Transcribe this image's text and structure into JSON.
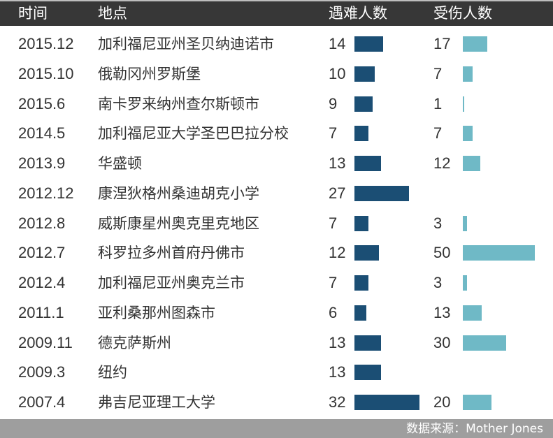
{
  "header": {
    "col_time": "时间",
    "col_place": "地点",
    "col_killed": "遇难人数",
    "col_injured": "受伤人数"
  },
  "colors": {
    "header_bg": "#373737",
    "killed_bar": "#1b4e74",
    "injured_bar": "#6fb9c6",
    "footer_bg": "#9e9e9e"
  },
  "rows": [
    {
      "date": "2015.12",
      "place": "加利福尼亚州圣贝纳迪诺市",
      "killed": "14",
      "injured": "17"
    },
    {
      "date": "2015.10",
      "place": "俄勒冈州罗斯堡",
      "killed": "10",
      "injured": "7"
    },
    {
      "date": "2015.6",
      "place": "南卡罗来纳州查尔斯顿市",
      "killed": "9",
      "injured": "1"
    },
    {
      "date": "2014.5",
      "place": "加利福尼亚大学圣巴巴拉分校",
      "killed": "7",
      "injured": "7"
    },
    {
      "date": "2013.9",
      "place": "华盛顿",
      "killed": "13",
      "injured": "12"
    },
    {
      "date": "2012.12",
      "place": "康涅狄格州桑迪胡克小学",
      "killed": "27",
      "injured": ""
    },
    {
      "date": "2012.8",
      "place": "威斯康星州奥克里克地区",
      "killed": "7",
      "injured": "3"
    },
    {
      "date": "2012.7",
      "place": "科罗拉多州首府丹佛市",
      "killed": "12",
      "injured": "50"
    },
    {
      "date": "2012.4",
      "place": "加利福尼亚州奥克兰市",
      "killed": "7",
      "injured": "3"
    },
    {
      "date": "2011.1",
      "place": "亚利桑那州图森市",
      "killed": "6",
      "injured": "13"
    },
    {
      "date": "2009.11",
      "place": "德克萨斯州",
      "killed": "13",
      "injured": "30"
    },
    {
      "date": "2009.3",
      "place": "纽约",
      "killed": "13",
      "injured": ""
    },
    {
      "date": "2007.4",
      "place": "弗吉尼亚理工大学",
      "killed": "32",
      "injured": "20"
    }
  ],
  "footer": {
    "source": "数据来源：Mother Jones"
  },
  "chart_data": {
    "type": "bar",
    "title": "",
    "categories": [
      "2015.12 加利福尼亚州圣贝纳迪诺市",
      "2015.10 俄勒冈州罗斯堡",
      "2015.6 南卡罗来纳州查尔斯顿市",
      "2014.5 加利福尼亚大学圣巴巴拉分校",
      "2013.9 华盛顿",
      "2012.12 康涅狄格州桑迪胡克小学",
      "2012.8 威斯康星州奥克里克地区",
      "2012.7 科罗拉多州首府丹佛市",
      "2012.4 加利福尼亚州奥克兰市",
      "2011.1 亚利桑那州图森市",
      "2009.11 德克萨斯州",
      "2009.3 纽约",
      "2007.4 弗吉尼亚理工大学"
    ],
    "series": [
      {
        "name": "遇难人数",
        "color": "#1b4e74",
        "values": [
          14,
          10,
          9,
          7,
          13,
          27,
          7,
          12,
          7,
          6,
          13,
          13,
          32
        ]
      },
      {
        "name": "受伤人数",
        "color": "#6fb9c6",
        "values": [
          17,
          7,
          1,
          7,
          12,
          null,
          3,
          50,
          3,
          13,
          30,
          null,
          20
        ]
      }
    ],
    "orientation": "horizontal",
    "xlabel": "",
    "ylabel": "",
    "grid": false,
    "legend": "column headers",
    "source": "数据来源：Mother Jones"
  }
}
